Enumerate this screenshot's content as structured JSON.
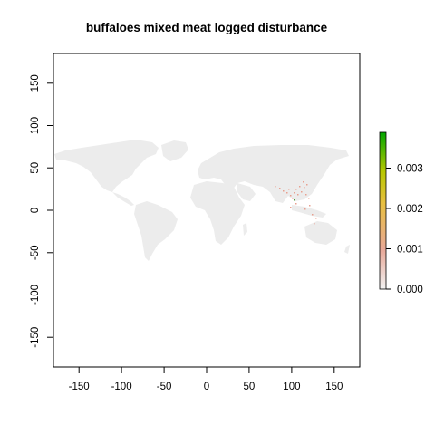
{
  "title": "buffaloes mixed meat logged disturbance",
  "map": {
    "type": "raster",
    "xlim": [
      -180,
      180
    ],
    "ylim": [
      -180,
      180
    ],
    "x_ticks": [
      "-150",
      "-100",
      "-50",
      "0",
      "50",
      "100",
      "150"
    ],
    "y_ticks": [
      "150",
      "100",
      "50",
      "0",
      "-50",
      "-100",
      "-150"
    ],
    "land_color": "#ececec",
    "highlight_region": "South and Southeast Asia",
    "highlight_color": "#e8a090"
  },
  "legend": {
    "ticks": [
      "0.003",
      "0.002",
      "0.001",
      "0.000"
    ],
    "range": [
      0,
      0.0039
    ],
    "colors": [
      "#f2f2f2",
      "#e8a898",
      "#e8c040",
      "#b8c800",
      "#00a600"
    ]
  }
}
